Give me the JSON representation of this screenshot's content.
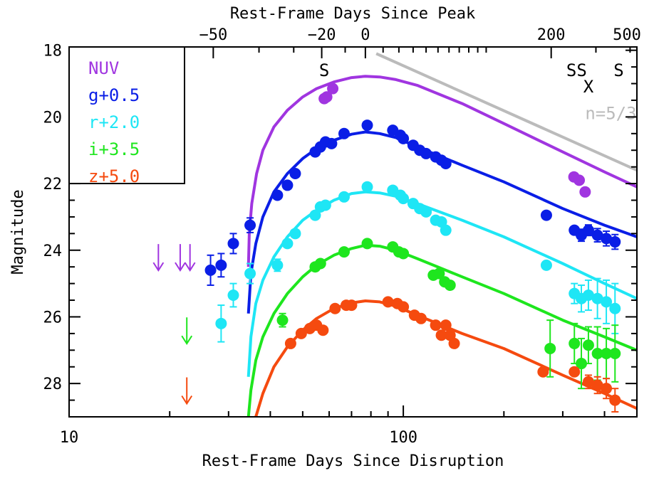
{
  "chart_data": {
    "type": "scatter",
    "x_scale": "log",
    "xlabel_bottom": "Rest-Frame Days Since Disruption",
    "xlabel_top": "Rest-Frame Days Since Peak",
    "ylabel": "Magnitude",
    "xlim": [
      10,
      500
    ],
    "ylim": [
      29,
      17.9
    ],
    "grid": false,
    "legend_placement": "top-left",
    "x_ticks_bottom": [
      {
        "value": 10,
        "label": "10"
      },
      {
        "value": 100,
        "label": "100"
      }
    ],
    "x_ticks_top": [
      {
        "value": -50,
        "label": "−50"
      },
      {
        "value": -20,
        "label": "−20"
      },
      {
        "value": 0,
        "label": "0"
      },
      {
        "value": 200,
        "label": "200"
      },
      {
        "value": 500,
        "label": "500"
      }
    ],
    "y_ticks": [
      {
        "value": 18,
        "label": "18"
      },
      {
        "value": 20,
        "label": "20"
      },
      {
        "value": 22,
        "label": "22"
      },
      {
        "value": 24,
        "label": "24"
      },
      {
        "value": 26,
        "label": "26"
      },
      {
        "value": 28,
        "label": "28"
      }
    ],
    "annotations": [
      {
        "text": "S",
        "x": 58,
        "y": 18.6
      },
      {
        "text": "SS",
        "x": 330,
        "y": 18.6
      },
      {
        "text": "X",
        "x": 358,
        "y": 19.1
      },
      {
        "text": "S",
        "x": 441,
        "y": 18.6
      }
    ],
    "reference_line": {
      "name": "n=5/3",
      "color": "#bbbbbb",
      "x": [
        83,
        500
      ],
      "y": [
        18.1,
        21.6
      ],
      "label_x": 350,
      "label_y": 19.9
    },
    "series": [
      {
        "name": "NUV",
        "color": "#a035e0",
        "points": [
          [
            58,
            19.45,
            0.1
          ],
          [
            59,
            19.4,
            0.1
          ],
          [
            61.5,
            19.15,
            0.1
          ],
          [
            324,
            21.8,
            0.1
          ],
          [
            336,
            21.9,
            0.1
          ],
          [
            350,
            22.25,
            0.12
          ]
        ],
        "upper_limits": [
          [
            18.5,
            24.2
          ],
          [
            21.5,
            24.2
          ],
          [
            23.0,
            24.2
          ]
        ],
        "model": [
          [
            34.4,
            24.5
          ],
          [
            34.6,
            23.5
          ],
          [
            35.2,
            22.6
          ],
          [
            36.4,
            21.7
          ],
          [
            38,
            21.0
          ],
          [
            41,
            20.3
          ],
          [
            45,
            19.8
          ],
          [
            50,
            19.4
          ],
          [
            55,
            19.15
          ],
          [
            62,
            18.95
          ],
          [
            70,
            18.82
          ],
          [
            77,
            18.78
          ],
          [
            85,
            18.8
          ],
          [
            95,
            18.88
          ],
          [
            110,
            19.05
          ],
          [
            150,
            19.6
          ],
          [
            200,
            20.2
          ],
          [
            300,
            21.05
          ],
          [
            400,
            21.65
          ],
          [
            500,
            22.1
          ]
        ]
      },
      {
        "name": "g+0.5",
        "color": "#0a1ee6",
        "points": [
          [
            26.5,
            24.6,
            0.45
          ],
          [
            28.5,
            24.45,
            0.35
          ],
          [
            31,
            23.8,
            0.3
          ],
          [
            34.8,
            23.25,
            0.22
          ],
          [
            42,
            22.35,
            0.12
          ],
          [
            45,
            22.05,
            0.1
          ],
          [
            47.5,
            21.7,
            0.1
          ],
          [
            54.5,
            21.05,
            0.1
          ],
          [
            56.5,
            20.9,
            0.1
          ],
          [
            58.5,
            20.75,
            0.1
          ],
          [
            61,
            20.8,
            0.1
          ],
          [
            66.5,
            20.5,
            0.1
          ],
          [
            78,
            20.25,
            0.1
          ],
          [
            93,
            20.4,
            0.1
          ],
          [
            98,
            20.55,
            0.1
          ],
          [
            100,
            20.65,
            0.1
          ],
          [
            107,
            20.85,
            0.1
          ],
          [
            112,
            21.0,
            0.1
          ],
          [
            117,
            21.1,
            0.1
          ],
          [
            125,
            21.2,
            0.1
          ],
          [
            130,
            21.3,
            0.1
          ],
          [
            134,
            21.4,
            0.1
          ],
          [
            268,
            22.95,
            0.12
          ],
          [
            325,
            23.4,
            0.15
          ],
          [
            341,
            23.55,
            0.18
          ],
          [
            358,
            23.4,
            0.16
          ],
          [
            381,
            23.55,
            0.2
          ],
          [
            405,
            23.65,
            0.22
          ],
          [
            430,
            23.75,
            0.22
          ]
        ],
        "model": [
          [
            34.4,
            25.9
          ],
          [
            35,
            24.7
          ],
          [
            36.2,
            23.8
          ],
          [
            38,
            23.0
          ],
          [
            41,
            22.25
          ],
          [
            45,
            21.7
          ],
          [
            50,
            21.25
          ],
          [
            55,
            20.95
          ],
          [
            62,
            20.7
          ],
          [
            70,
            20.52
          ],
          [
            77,
            20.45
          ],
          [
            85,
            20.5
          ],
          [
            95,
            20.62
          ],
          [
            110,
            20.9
          ],
          [
            150,
            21.45
          ],
          [
            200,
            21.95
          ],
          [
            300,
            22.75
          ],
          [
            400,
            23.25
          ],
          [
            500,
            23.6
          ]
        ]
      },
      {
        "name": "r+2.0",
        "color": "#1ee6f5",
        "points": [
          [
            28.5,
            26.2,
            0.55
          ],
          [
            31,
            25.35,
            0.35
          ],
          [
            34.8,
            24.7,
            0.3
          ],
          [
            42,
            24.45,
            0.18
          ],
          [
            45,
            23.8,
            0.14
          ],
          [
            47.5,
            23.5,
            0.12
          ],
          [
            54.5,
            22.95,
            0.12
          ],
          [
            56.5,
            22.7,
            0.12
          ],
          [
            58.5,
            22.65,
            0.12
          ],
          [
            66.5,
            22.4,
            0.12
          ],
          [
            78,
            22.1,
            0.12
          ],
          [
            93,
            22.2,
            0.12
          ],
          [
            98,
            22.35,
            0.12
          ],
          [
            100,
            22.45,
            0.12
          ],
          [
            107,
            22.6,
            0.12
          ],
          [
            112,
            22.75,
            0.12
          ],
          [
            117,
            22.85,
            0.12
          ],
          [
            125,
            23.1,
            0.12
          ],
          [
            130,
            23.15,
            0.12
          ],
          [
            134,
            23.4,
            0.15
          ],
          [
            268,
            24.45,
            0.15
          ],
          [
            325,
            25.3,
            0.3
          ],
          [
            341,
            25.45,
            0.4
          ],
          [
            358,
            25.35,
            0.45
          ],
          [
            381,
            25.45,
            0.6
          ],
          [
            405,
            25.55,
            0.65
          ],
          [
            430,
            25.75,
            0.75
          ]
        ],
        "model": [
          [
            34.4,
            27.8
          ],
          [
            35,
            26.6
          ],
          [
            36.2,
            25.6
          ],
          [
            38,
            24.9
          ],
          [
            41,
            24.2
          ],
          [
            45,
            23.6
          ],
          [
            50,
            23.1
          ],
          [
            55,
            22.8
          ],
          [
            62,
            22.5
          ],
          [
            70,
            22.3
          ],
          [
            77,
            22.25
          ],
          [
            85,
            22.28
          ],
          [
            95,
            22.38
          ],
          [
            110,
            22.6
          ],
          [
            150,
            23.1
          ],
          [
            200,
            23.6
          ],
          [
            300,
            24.4
          ],
          [
            400,
            25.0
          ],
          [
            500,
            25.45
          ]
        ]
      },
      {
        "name": "i+3.5",
        "color": "#1ee61e",
        "points": [
          [
            43.5,
            26.1,
            0.2
          ],
          [
            54.5,
            24.5,
            0.12
          ],
          [
            56.5,
            24.4,
            0.12
          ],
          [
            66.5,
            24.05,
            0.12
          ],
          [
            78,
            23.8,
            0.12
          ],
          [
            93,
            23.9,
            0.12
          ],
          [
            97,
            24.05,
            0.12
          ],
          [
            100,
            24.1,
            0.12
          ],
          [
            123,
            24.75,
            0.15
          ],
          [
            128,
            24.7,
            0.15
          ],
          [
            133,
            24.95,
            0.15
          ],
          [
            138,
            25.05,
            0.15
          ],
          [
            275,
            26.95,
            0.85
          ],
          [
            325,
            26.8,
            0.6
          ],
          [
            341,
            27.4,
            0.75
          ],
          [
            358,
            26.85,
            0.55
          ],
          [
            381,
            27.1,
            0.8
          ],
          [
            405,
            27.1,
            0.75
          ],
          [
            430,
            27.1,
            0.85
          ]
        ],
        "model": [
          [
            34.4,
            29.0
          ],
          [
            35,
            28.2
          ],
          [
            36.2,
            27.3
          ],
          [
            38,
            26.6
          ],
          [
            41,
            25.9
          ],
          [
            45,
            25.3
          ],
          [
            50,
            24.8
          ],
          [
            55,
            24.45
          ],
          [
            62,
            24.15
          ],
          [
            70,
            23.95
          ],
          [
            77,
            23.85
          ],
          [
            85,
            23.88
          ],
          [
            95,
            24.0
          ],
          [
            110,
            24.25
          ],
          [
            150,
            24.8
          ],
          [
            200,
            25.3
          ],
          [
            300,
            26.1
          ],
          [
            400,
            26.6
          ],
          [
            500,
            27.0
          ]
        ]
      },
      {
        "name": "z+5.0",
        "color": "#f54a0f",
        "points": [
          [
            46,
            26.8,
            0.12
          ],
          [
            49.5,
            26.5,
            0.12
          ],
          [
            52.5,
            26.35,
            0.12
          ],
          [
            55,
            26.25,
            0.12
          ],
          [
            57.5,
            26.4,
            0.12
          ],
          [
            62.5,
            25.75,
            0.12
          ],
          [
            67.5,
            25.65,
            0.12
          ],
          [
            70,
            25.65,
            0.12
          ],
          [
            90,
            25.55,
            0.12
          ],
          [
            96,
            25.6,
            0.12
          ],
          [
            100,
            25.7,
            0.12
          ],
          [
            108,
            25.95,
            0.12
          ],
          [
            113,
            26.05,
            0.12
          ],
          [
            125,
            26.25,
            0.12
          ],
          [
            130,
            26.55,
            0.12
          ],
          [
            134,
            26.25,
            0.15
          ],
          [
            138,
            26.55,
            0.15
          ],
          [
            142,
            26.8,
            0.15
          ],
          [
            262,
            27.65,
            0.15
          ],
          [
            325,
            27.65,
            0.15
          ],
          [
            358,
            27.95,
            0.2
          ],
          [
            381,
            28.05,
            0.25
          ],
          [
            405,
            28.15,
            0.3
          ],
          [
            430,
            28.5,
            0.35
          ]
        ],
        "upper_limits": [
          [
            22.5,
            28.2
          ]
        ],
        "model": [
          [
            36.2,
            29.0
          ],
          [
            38,
            28.3
          ],
          [
            41,
            27.5
          ],
          [
            45,
            26.9
          ],
          [
            50,
            26.4
          ],
          [
            55,
            26.05
          ],
          [
            62,
            25.75
          ],
          [
            70,
            25.58
          ],
          [
            77,
            25.52
          ],
          [
            85,
            25.55
          ],
          [
            95,
            25.68
          ],
          [
            110,
            25.95
          ],
          [
            150,
            26.5
          ],
          [
            200,
            26.95
          ],
          [
            300,
            27.75
          ],
          [
            400,
            28.3
          ],
          [
            500,
            28.75
          ]
        ]
      }
    ],
    "extra_upper_limits": [
      {
        "color": "#1ee61e",
        "x": 22.5,
        "y": 26.4
      }
    ]
  }
}
